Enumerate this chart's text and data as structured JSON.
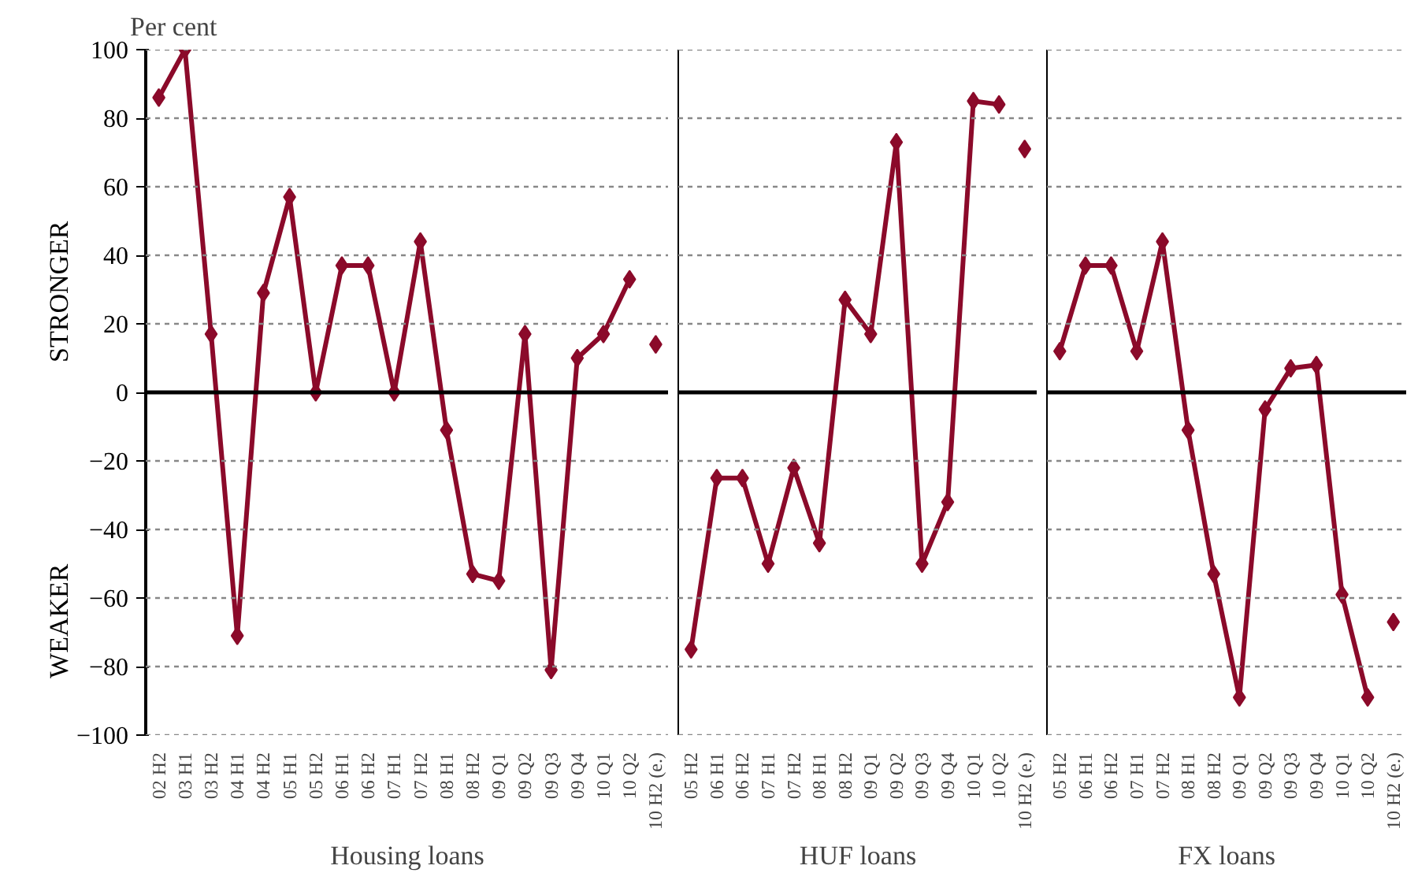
{
  "chart_data": [
    {
      "type": "line",
      "xlabel": "Housing loans",
      "ylabel": "Per cent",
      "categories": [
        "02 H2",
        "03 H1",
        "03 H2",
        "04 H1",
        "04 H2",
        "05 H1",
        "05 H2",
        "06 H1",
        "06 H2",
        "07 H1",
        "07 H2",
        "08 H1",
        "08 H2",
        "09 Q1",
        "09 Q2",
        "09 Q3",
        "09 Q4",
        "10 Q1",
        "10 Q2",
        "10 H2 (e.)"
      ],
      "series": [
        {
          "color": "#8b0a2a",
          "values": [
            86,
            100,
            17,
            -71,
            29,
            57,
            0,
            37,
            37,
            0,
            44,
            -11,
            -53,
            -55,
            17,
            -81,
            10,
            17,
            33,
            null
          ]
        },
        {
          "type": "scatter",
          "color": "#8b0a2a",
          "values": [
            null,
            null,
            null,
            null,
            null,
            null,
            null,
            null,
            null,
            null,
            null,
            null,
            null,
            null,
            null,
            null,
            null,
            null,
            null,
            14
          ]
        }
      ],
      "ylim": [
        -100,
        100
      ],
      "yticks": [
        -100,
        -80,
        -60,
        -40,
        -20,
        0,
        20,
        40,
        60,
        80,
        100
      ],
      "annotations": [
        "STRONGER",
        "WEAKER"
      ],
      "ref_lines": [
        {
          "axis": "y",
          "value": 0,
          "color": "#000000"
        }
      ],
      "grid": "y",
      "marker": "diamond",
      "line_style": "solid"
    },
    {
      "type": "line",
      "xlabel": "HUF loans",
      "categories": [
        "05 H2",
        "06 H1",
        "06 H2",
        "07 H1",
        "07 H2",
        "08 H1",
        "08 H2",
        "09 Q1",
        "09 Q2",
        "09 Q3",
        "09 Q4",
        "10 Q1",
        "10 Q2",
        "10 H2 (e.)"
      ],
      "series": [
        {
          "color": "#8b0a2a",
          "values": [
            -75,
            -25,
            -25,
            -50,
            -22,
            -44,
            27,
            17,
            73,
            -50,
            -32,
            85,
            84,
            null
          ]
        },
        {
          "type": "scatter",
          "color": "#8b0a2a",
          "values": [
            null,
            null,
            null,
            null,
            null,
            null,
            null,
            null,
            null,
            null,
            null,
            null,
            null,
            71
          ]
        }
      ],
      "ylim": [
        -100,
        100
      ],
      "yticks": [
        -100,
        -80,
        -60,
        -40,
        -20,
        0,
        20,
        40,
        60,
        80,
        100
      ],
      "tick_labels": "x",
      "ref_lines": [
        {
          "axis": "y",
          "value": 0,
          "color": "#000000"
        }
      ],
      "grid": "y",
      "marker": "diamond",
      "line_style": "solid"
    },
    {
      "type": "line",
      "xlabel": "FX loans",
      "categories": [
        "05 H2",
        "06 H1",
        "06 H2",
        "07 H1",
        "07 H2",
        "08 H1",
        "08 H2",
        "09 Q1",
        "09 Q2",
        "09 Q3",
        "09 Q4",
        "10 Q1",
        "10 Q2",
        "10 H2 (e.)"
      ],
      "series": [
        {
          "color": "#8b0a2a",
          "values": [
            12,
            37,
            37,
            12,
            44,
            -11,
            -53,
            -89,
            -5,
            7,
            8,
            -59,
            -89,
            null
          ]
        },
        {
          "type": "scatter",
          "color": "#8b0a2a",
          "values": [
            null,
            null,
            null,
            null,
            null,
            null,
            null,
            null,
            null,
            null,
            null,
            null,
            null,
            -67
          ]
        }
      ],
      "ylim": [
        -100,
        100
      ],
      "yticks": [
        -100,
        -80,
        -60,
        -40,
        -20,
        0,
        20,
        40,
        60,
        80,
        100
      ],
      "tick_labels": "x",
      "ref_lines": [
        {
          "axis": "y",
          "value": 0,
          "color": "#000000"
        }
      ],
      "grid": "y",
      "marker": "diamond",
      "line_style": "solid"
    }
  ]
}
